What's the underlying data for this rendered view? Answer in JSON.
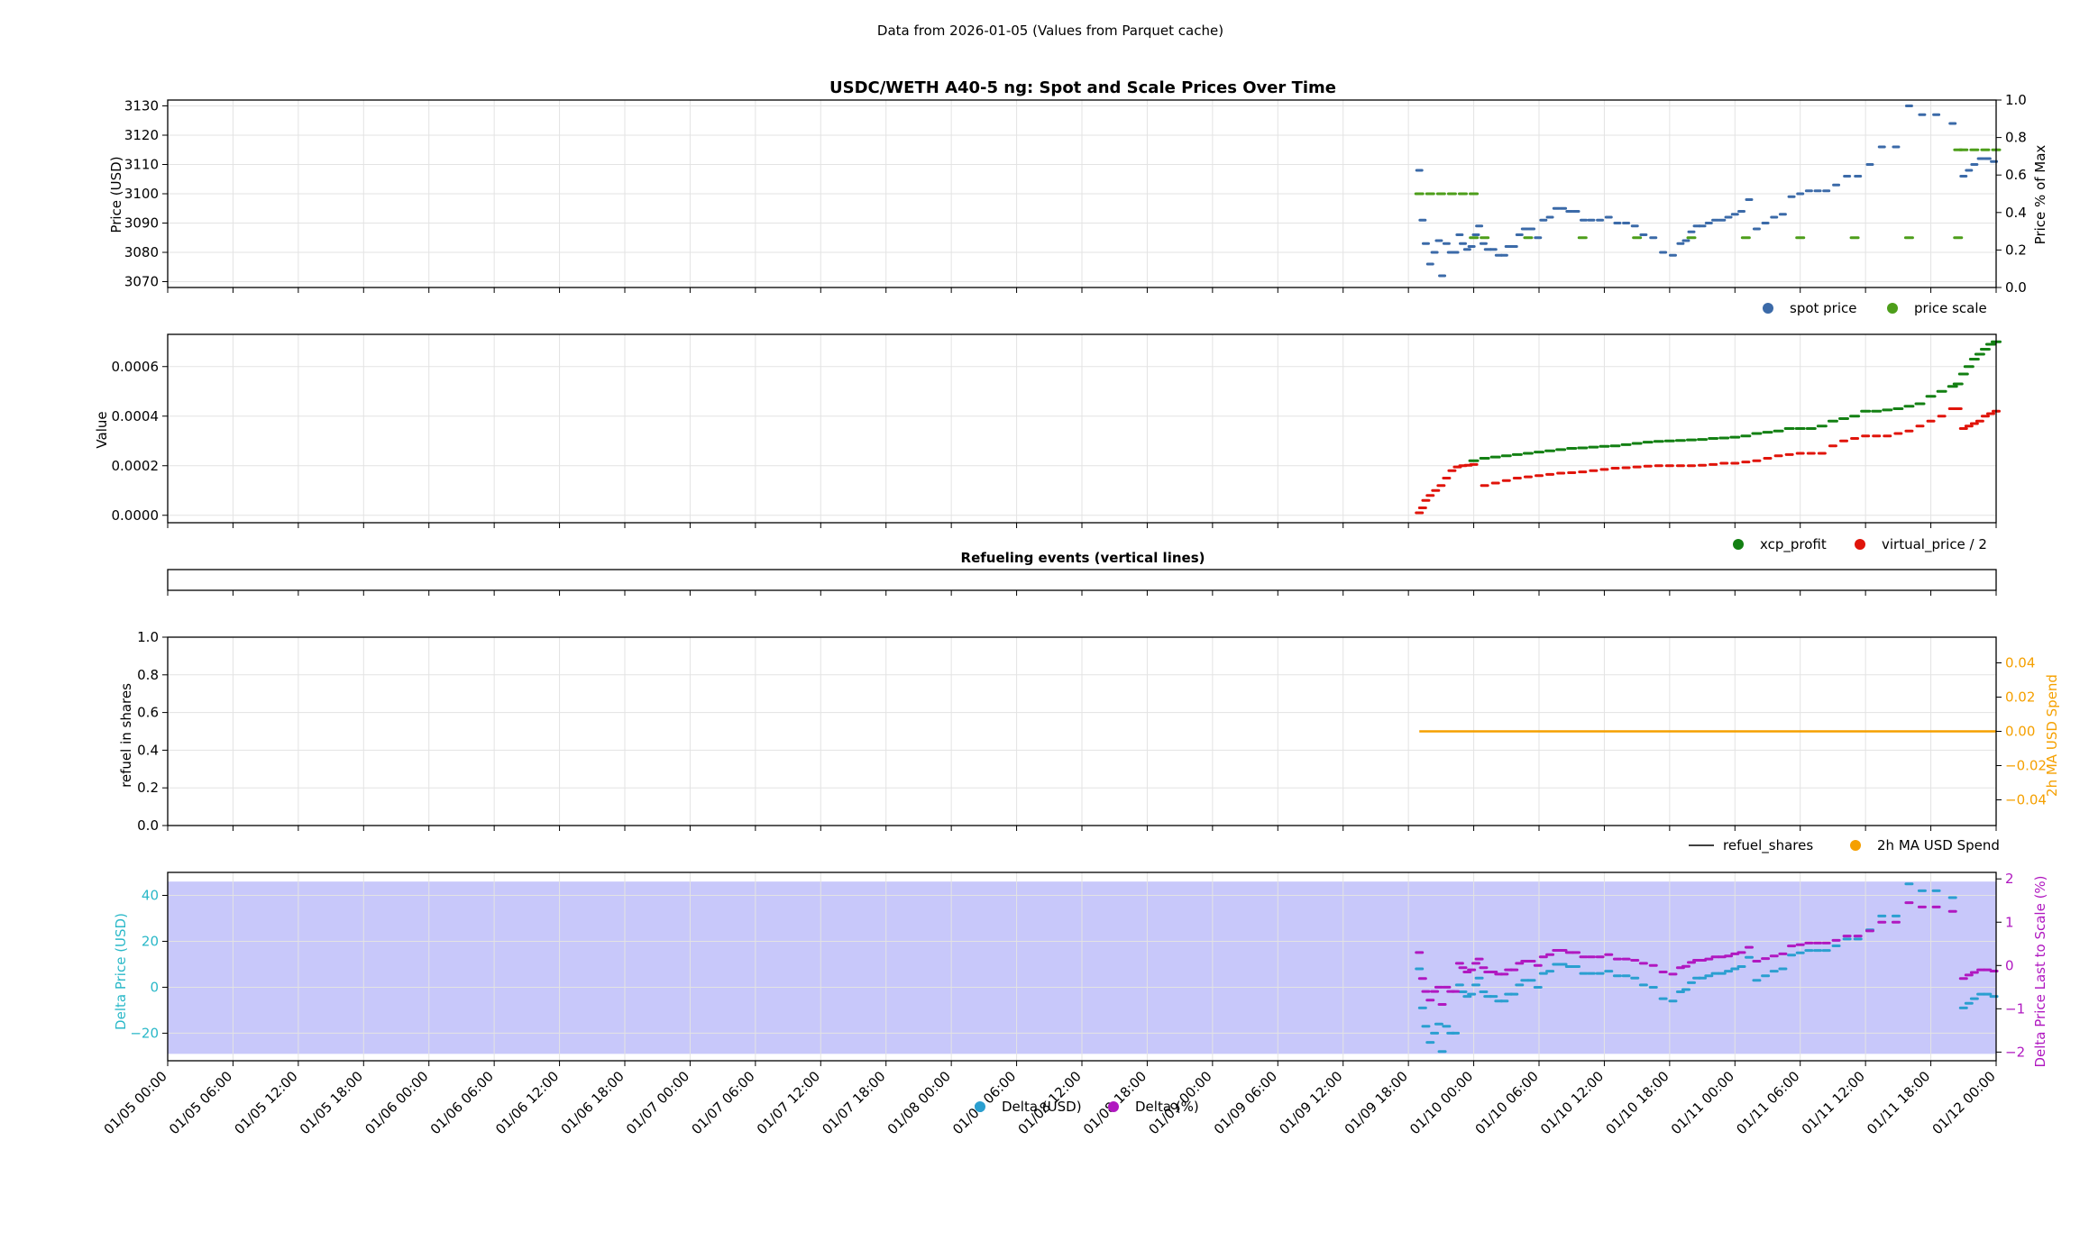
{
  "suptitle": "Data from 2026-01-05 (Values from Parquet cache)",
  "x_tick_labels": [
    "01/05 00:00",
    "01/05 06:00",
    "01/05 12:00",
    "01/05 18:00",
    "01/06 00:00",
    "01/06 06:00",
    "01/06 12:00",
    "01/06 18:00",
    "01/07 00:00",
    "01/07 06:00",
    "01/07 12:00",
    "01/07 18:00",
    "01/08 00:00",
    "01/08 06:00",
    "01/08 12:00",
    "01/08 18:00",
    "01/09 00:00",
    "01/09 06:00",
    "01/09 12:00",
    "01/09 18:00",
    "01/10 00:00",
    "01/10 06:00",
    "01/10 12:00",
    "01/10 18:00",
    "01/11 00:00",
    "01/11 06:00",
    "01/11 12:00",
    "01/11 18:00",
    "01/12 00:00"
  ],
  "colors": {
    "spot": "#3b6aa8",
    "scale": "#4d9e1a",
    "xcp": "#138013",
    "virtual": "#e0140a",
    "refuel": "#000000",
    "ma": "#f5a000",
    "delta_usd": "#2a9fd0",
    "delta_pct": "#b018c0",
    "shade": "#c8c8fa"
  },
  "chart_data": [
    {
      "type": "scatter",
      "title": "USDC/WETH A40-5 ng: Spot and Scale Prices Over Time",
      "ylabel": "Price (USD)",
      "ylabel_right": "Price % of Max",
      "xlim_hours": [
        0,
        168
      ],
      "ylim": [
        3068,
        3132
      ],
      "yticks": [
        "3070",
        "3080",
        "3090",
        "3100",
        "3110",
        "3120",
        "3130"
      ],
      "ylim_right": [
        0,
        1
      ],
      "yticks_right": [
        "0.0",
        "0.2",
        "0.4",
        "0.6",
        "0.8",
        "1.0"
      ],
      "legend": [
        {
          "name": "spot price",
          "color": "spot"
        },
        {
          "name": "price scale",
          "color": "scale"
        }
      ],
      "legend_position": "lower-right outside",
      "series": [
        {
          "name": "spot price",
          "x": [
            115,
            115.3,
            115.6,
            116,
            116.4,
            116.8,
            117.1,
            117.5,
            117.9,
            118.3,
            118.7,
            119,
            119.4,
            119.8,
            120.2,
            120.5,
            120.9,
            121.3,
            121.8,
            122.3,
            122.8,
            123.2,
            123.7,
            124.2,
            124.7,
            125.3,
            125.9,
            126.4,
            127,
            127.6,
            128.2,
            128.8,
            129.4,
            130.1,
            130.8,
            131.6,
            132.4,
            133.2,
            134,
            134.8,
            135.6,
            136.5,
            137.4,
            138.3,
            139,
            139.5,
            140,
            140.5,
            141,
            141.6,
            142.2,
            142.8,
            143.4,
            144,
            144.6,
            145.3,
            146,
            146.8,
            147.6,
            148.4,
            149.2,
            150,
            150.8,
            151.6,
            152.4,
            153.3,
            154.3,
            155.3,
            156.4,
            157.5,
            158.8,
            160,
            161.2,
            162.5,
            164,
            165,
            165.5,
            166,
            166.6,
            167.2,
            167.8
          ],
          "y": [
            3108,
            3091,
            3083,
            3076,
            3080,
            3084,
            3072,
            3083,
            3080,
            3080,
            3086,
            3083,
            3081,
            3082,
            3086,
            3089,
            3083,
            3081,
            3081,
            3079,
            3079,
            3082,
            3082,
            3086,
            3088,
            3088,
            3085,
            3091,
            3092,
            3095,
            3095,
            3094,
            3094,
            3091,
            3091,
            3091,
            3092,
            3090,
            3090,
            3089,
            3086,
            3085,
            3080,
            3079,
            3083,
            3084,
            3087,
            3089,
            3089,
            3090,
            3091,
            3091,
            3092,
            3093,
            3094,
            3098,
            3088,
            3090,
            3092,
            3093,
            3099,
            3100,
            3101,
            3101,
            3101,
            3103,
            3106,
            3106,
            3110,
            3116,
            3116,
            3130,
            3127,
            3127,
            3124,
            3106,
            3108,
            3110,
            3112,
            3112,
            3111
          ]
        },
        {
          "name": "price scale",
          "x": [
            115,
            116,
            117,
            118,
            119,
            120,
            120.01,
            121,
            125,
            130,
            135,
            140,
            145,
            150,
            155,
            160,
            164.5,
            164.51,
            165,
            166,
            167,
            168
          ],
          "y": [
            3100,
            3100,
            3100,
            3100,
            3100,
            3100,
            3085,
            3085,
            3085,
            3085,
            3085,
            3085,
            3085,
            3085,
            3085,
            3085,
            3085,
            3115,
            3115,
            3115,
            3115,
            3115
          ]
        }
      ]
    },
    {
      "type": "scatter",
      "ylabel": "Value",
      "xlim_hours": [
        0,
        168
      ],
      "ylim": [
        -3e-05,
        0.00073
      ],
      "yticks": [
        "0.0000",
        "0.0002",
        "0.0004",
        "0.0006"
      ],
      "legend": [
        {
          "name": "xcp_profit",
          "color": "xcp"
        },
        {
          "name": "virtual_price / 2",
          "color": "virtual"
        }
      ],
      "legend_position": "lower-right outside",
      "series": [
        {
          "name": "xcp_profit",
          "x": [
            120,
            121,
            122,
            123,
            124,
            125,
            126,
            127,
            128,
            129,
            130,
            131,
            132,
            133,
            134,
            135,
            136,
            137,
            138,
            139,
            140,
            141,
            142,
            143,
            144,
            145,
            146,
            147,
            148,
            149,
            150,
            151,
            152,
            153,
            154,
            155,
            156,
            157,
            158,
            159,
            160,
            161,
            162,
            163,
            164,
            164.5,
            165,
            165.5,
            166,
            166.5,
            167,
            167.5,
            168
          ],
          "y": [
            0.00022,
            0.00023,
            0.000235,
            0.00024,
            0.000245,
            0.00025,
            0.000255,
            0.00026,
            0.000265,
            0.00027,
            0.000272,
            0.000275,
            0.000278,
            0.00028,
            0.000285,
            0.00029,
            0.000295,
            0.000298,
            0.0003,
            0.000302,
            0.000304,
            0.000306,
            0.00031,
            0.000312,
            0.000315,
            0.00032,
            0.00033,
            0.000335,
            0.00034,
            0.00035,
            0.00035,
            0.00035,
            0.00036,
            0.00038,
            0.00039,
            0.0004,
            0.00042,
            0.00042,
            0.000425,
            0.00043,
            0.00044,
            0.00045,
            0.00048,
            0.0005,
            0.00052,
            0.00053,
            0.00057,
            0.0006,
            0.00063,
            0.00065,
            0.00067,
            0.00069,
            0.0007
          ]
        },
        {
          "name": "virtual_price / 2",
          "x": [
            115,
            115.3,
            115.6,
            116,
            116.5,
            117,
            117.5,
            118,
            118.5,
            119,
            119.5,
            120,
            121,
            122,
            123,
            124,
            125,
            126,
            127,
            128,
            129,
            130,
            131,
            132,
            133,
            134,
            135,
            136,
            137,
            138,
            139,
            140,
            141,
            142,
            143,
            144,
            145,
            146,
            147,
            148,
            149,
            150,
            151,
            152,
            153,
            154,
            155,
            156,
            157,
            158,
            159,
            160,
            161,
            162,
            163,
            164,
            164.5,
            165,
            165.5,
            166,
            166.5,
            167,
            167.5,
            168
          ],
          "y": [
            1e-05,
            3e-05,
            6e-05,
            8e-05,
            0.0001,
            0.00012,
            0.00015,
            0.00018,
            0.000195,
            0.0002,
            0.000202,
            0.000205,
            0.00012,
            0.00013,
            0.00014,
            0.00015,
            0.000155,
            0.00016,
            0.000165,
            0.00017,
            0.000172,
            0.000175,
            0.00018,
            0.000185,
            0.00019,
            0.000192,
            0.000195,
            0.000198,
            0.0002,
            0.0002,
            0.0002,
            0.0002,
            0.000202,
            0.000205,
            0.00021,
            0.00021,
            0.000215,
            0.00022,
            0.00023,
            0.00024,
            0.000245,
            0.00025,
            0.00025,
            0.00025,
            0.00028,
            0.0003,
            0.00031,
            0.00032,
            0.00032,
            0.00032,
            0.00033,
            0.00034,
            0.00036,
            0.00038,
            0.0004,
            0.00043,
            0.00043,
            0.00035,
            0.00036,
            0.00037,
            0.00038,
            0.0004,
            0.00041,
            0.00042
          ]
        }
      ]
    },
    {
      "type": "line",
      "title": "Refueling events (vertical lines)",
      "xlim_hours": [
        0,
        168
      ],
      "series": []
    },
    {
      "type": "line",
      "ylabel": "refuel in shares",
      "ylabel_right": "2h MA USD Spend",
      "xlim_hours": [
        0,
        168
      ],
      "ylim": [
        0,
        1
      ],
      "yticks": [
        "0.0",
        "0.2",
        "0.4",
        "0.6",
        "0.8",
        "1.0"
      ],
      "ylim_right": [
        -0.055,
        0.055
      ],
      "yticks_right": [
        "−0.04",
        "−0.02",
        "0.00",
        "0.02",
        "0.04"
      ],
      "legend": [
        {
          "name": "refuel_shares",
          "color": "refuel"
        },
        {
          "name": "2h MA USD Spend",
          "color": "ma"
        }
      ],
      "legend_position": "lower-right outside",
      "series": [
        {
          "name": "2h MA USD Spend",
          "x": [
            115,
            168
          ],
          "y": [
            0,
            0
          ]
        }
      ]
    },
    {
      "type": "scatter",
      "ylabel": "Delta Price (USD)",
      "ylabel_right": "Delta Price Last to Scale (%)",
      "xlim_hours": [
        0,
        168
      ],
      "ylim": [
        -32,
        50
      ],
      "yticks": [
        "−20",
        "0",
        "20",
        "40"
      ],
      "ylim_right": [
        -2.2,
        2.15
      ],
      "yticks_right": [
        "−2",
        "−1",
        "0",
        "1",
        "2"
      ],
      "shaded_band_usd": [
        -29,
        46
      ],
      "legend": [
        {
          "name": "Delta (USD)",
          "color": "delta_usd"
        },
        {
          "name": "Delta (%)",
          "color": "delta_pct"
        }
      ],
      "legend_position": "lower-center",
      "series": [
        {
          "name": "Delta (USD)",
          "x": [
            115,
            115.3,
            115.6,
            116,
            116.4,
            116.8,
            117.1,
            117.5,
            117.9,
            118.3,
            118.7,
            119,
            119.4,
            119.8,
            120.2,
            120.5,
            120.9,
            121.3,
            121.8,
            122.3,
            122.8,
            123.2,
            123.7,
            124.2,
            124.7,
            125.3,
            125.9,
            126.4,
            127,
            127.6,
            128.2,
            128.8,
            129.4,
            130.1,
            130.8,
            131.6,
            132.4,
            133.2,
            134,
            134.8,
            135.6,
            136.5,
            137.4,
            138.3,
            139,
            139.5,
            140,
            140.5,
            141,
            141.6,
            142.2,
            142.8,
            143.4,
            144,
            144.6,
            145.3,
            146,
            146.8,
            147.6,
            148.4,
            149.2,
            150,
            150.8,
            151.6,
            152.4,
            153.3,
            154.3,
            155.3,
            156.4,
            157.5,
            158.8,
            160,
            161.2,
            162.5,
            164,
            165,
            165.5,
            166,
            166.6,
            167.2,
            167.8
          ],
          "y": [
            8,
            -9,
            -17,
            -24,
            -20,
            -16,
            -28,
            -17,
            -20,
            -20,
            1,
            -2,
            -4,
            -3,
            1,
            4,
            -2,
            -4,
            -4,
            -6,
            -6,
            -3,
            -3,
            1,
            3,
            3,
            0,
            6,
            7,
            10,
            10,
            9,
            9,
            6,
            6,
            6,
            7,
            5,
            5,
            4,
            1,
            0,
            -5,
            -6,
            -2,
            -1,
            2,
            4,
            4,
            5,
            6,
            6,
            7,
            8,
            9,
            13,
            3,
            5,
            7,
            8,
            14,
            15,
            16,
            16,
            16,
            18,
            21,
            21,
            25,
            31,
            31,
            45,
            42,
            42,
            39,
            -9,
            -7,
            -5,
            -3,
            -3,
            -4
          ]
        },
        {
          "name": "Delta (%)",
          "x": [
            115,
            115.3,
            115.6,
            116,
            116.4,
            116.8,
            117.1,
            117.5,
            117.9,
            118.3,
            118.7,
            119,
            119.4,
            119.8,
            120.2,
            120.5,
            120.9,
            121.3,
            121.8,
            122.3,
            122.8,
            123.2,
            123.7,
            124.2,
            124.7,
            125.3,
            125.9,
            126.4,
            127,
            127.6,
            128.2,
            128.8,
            129.4,
            130.1,
            130.8,
            131.6,
            132.4,
            133.2,
            134,
            134.8,
            135.6,
            136.5,
            137.4,
            138.3,
            139,
            139.5,
            140,
            140.5,
            141,
            141.6,
            142.2,
            142.8,
            143.4,
            144,
            144.6,
            145.3,
            146,
            146.8,
            147.6,
            148.4,
            149.2,
            150,
            150.8,
            151.6,
            152.4,
            153.3,
            154.3,
            155.3,
            156.4,
            157.5,
            158.8,
            160,
            161.2,
            162.5,
            164,
            165,
            165.5,
            166,
            166.6,
            167.2,
            167.8
          ],
          "y": [
            0.3,
            -0.3,
            -0.6,
            -0.8,
            -0.6,
            -0.5,
            -0.9,
            -0.5,
            -0.6,
            -0.6,
            0.05,
            -0.05,
            -0.15,
            -0.1,
            0.05,
            0.15,
            -0.05,
            -0.15,
            -0.15,
            -0.2,
            -0.2,
            -0.1,
            -0.1,
            0.05,
            0.1,
            0.1,
            0,
            0.2,
            0.25,
            0.35,
            0.35,
            0.3,
            0.3,
            0.2,
            0.2,
            0.2,
            0.25,
            0.15,
            0.15,
            0.12,
            0.05,
            0,
            -0.15,
            -0.2,
            -0.05,
            -0.02,
            0.07,
            0.12,
            0.12,
            0.15,
            0.2,
            0.2,
            0.22,
            0.27,
            0.3,
            0.42,
            0.1,
            0.16,
            0.22,
            0.27,
            0.45,
            0.48,
            0.52,
            0.52,
            0.52,
            0.58,
            0.68,
            0.68,
            0.8,
            1.0,
            1.0,
            1.45,
            1.35,
            1.35,
            1.25,
            -0.3,
            -0.22,
            -0.16,
            -0.1,
            -0.1,
            -0.13
          ]
        }
      ]
    }
  ]
}
